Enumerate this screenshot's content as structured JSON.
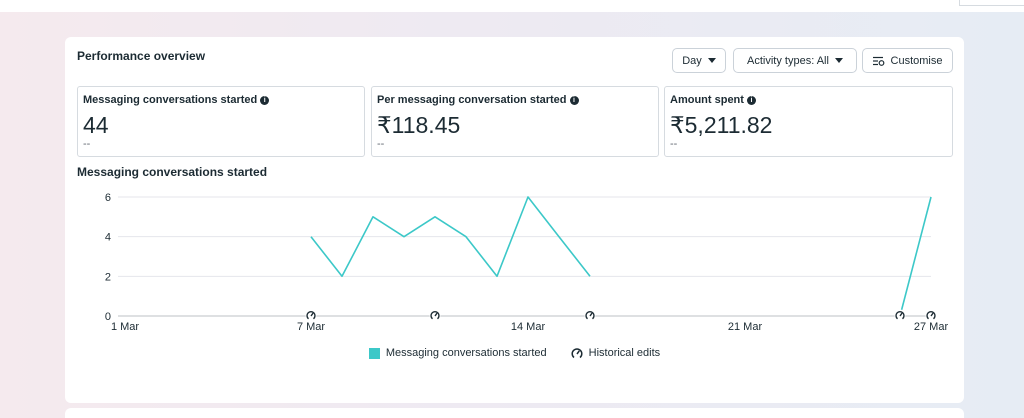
{
  "panel": {
    "title": "Performance overview",
    "controls": {
      "day_label": "Day",
      "activity_label": "Activity types: All",
      "customise_label": "Customise"
    }
  },
  "metrics": [
    {
      "label": "Messaging conversations started",
      "value": "44",
      "sub": "--"
    },
    {
      "label": "Per messaging conversation started",
      "value": "₹118.45",
      "sub": "--"
    },
    {
      "label": "Amount spent",
      "value": "₹5,211.82",
      "sub": "--"
    }
  ],
  "chart_data": {
    "type": "line",
    "title": "Messaging conversations started",
    "x_ticks": [
      "1 Mar",
      "7 Mar",
      "14 Mar",
      "21 Mar",
      "27 Mar"
    ],
    "x_tick_days": [
      1,
      7,
      14,
      21,
      27
    ],
    "y_ticks": [
      0,
      2,
      4,
      6
    ],
    "ylim": [
      0,
      6
    ],
    "xlim": [
      1,
      27
    ],
    "grid": true,
    "series": [
      {
        "name": "Messaging conversations started",
        "color": "#3cc8c8",
        "segments": [
          [
            [
              7,
              4
            ],
            [
              8,
              2
            ],
            [
              9,
              5
            ],
            [
              10,
              4
            ],
            [
              11,
              5
            ],
            [
              12,
              4
            ],
            [
              13,
              2
            ],
            [
              14,
              6
            ],
            [
              15,
              4
            ],
            [
              16,
              2
            ]
          ],
          [
            [
              26,
              0
            ],
            [
              27,
              6
            ]
          ]
        ]
      }
    ],
    "historical_edit_days": [
      7,
      11,
      16,
      26,
      27
    ],
    "legend": {
      "position": "bottom-center",
      "series_label": "Messaging conversations started",
      "edits_label": "Historical edits"
    }
  }
}
